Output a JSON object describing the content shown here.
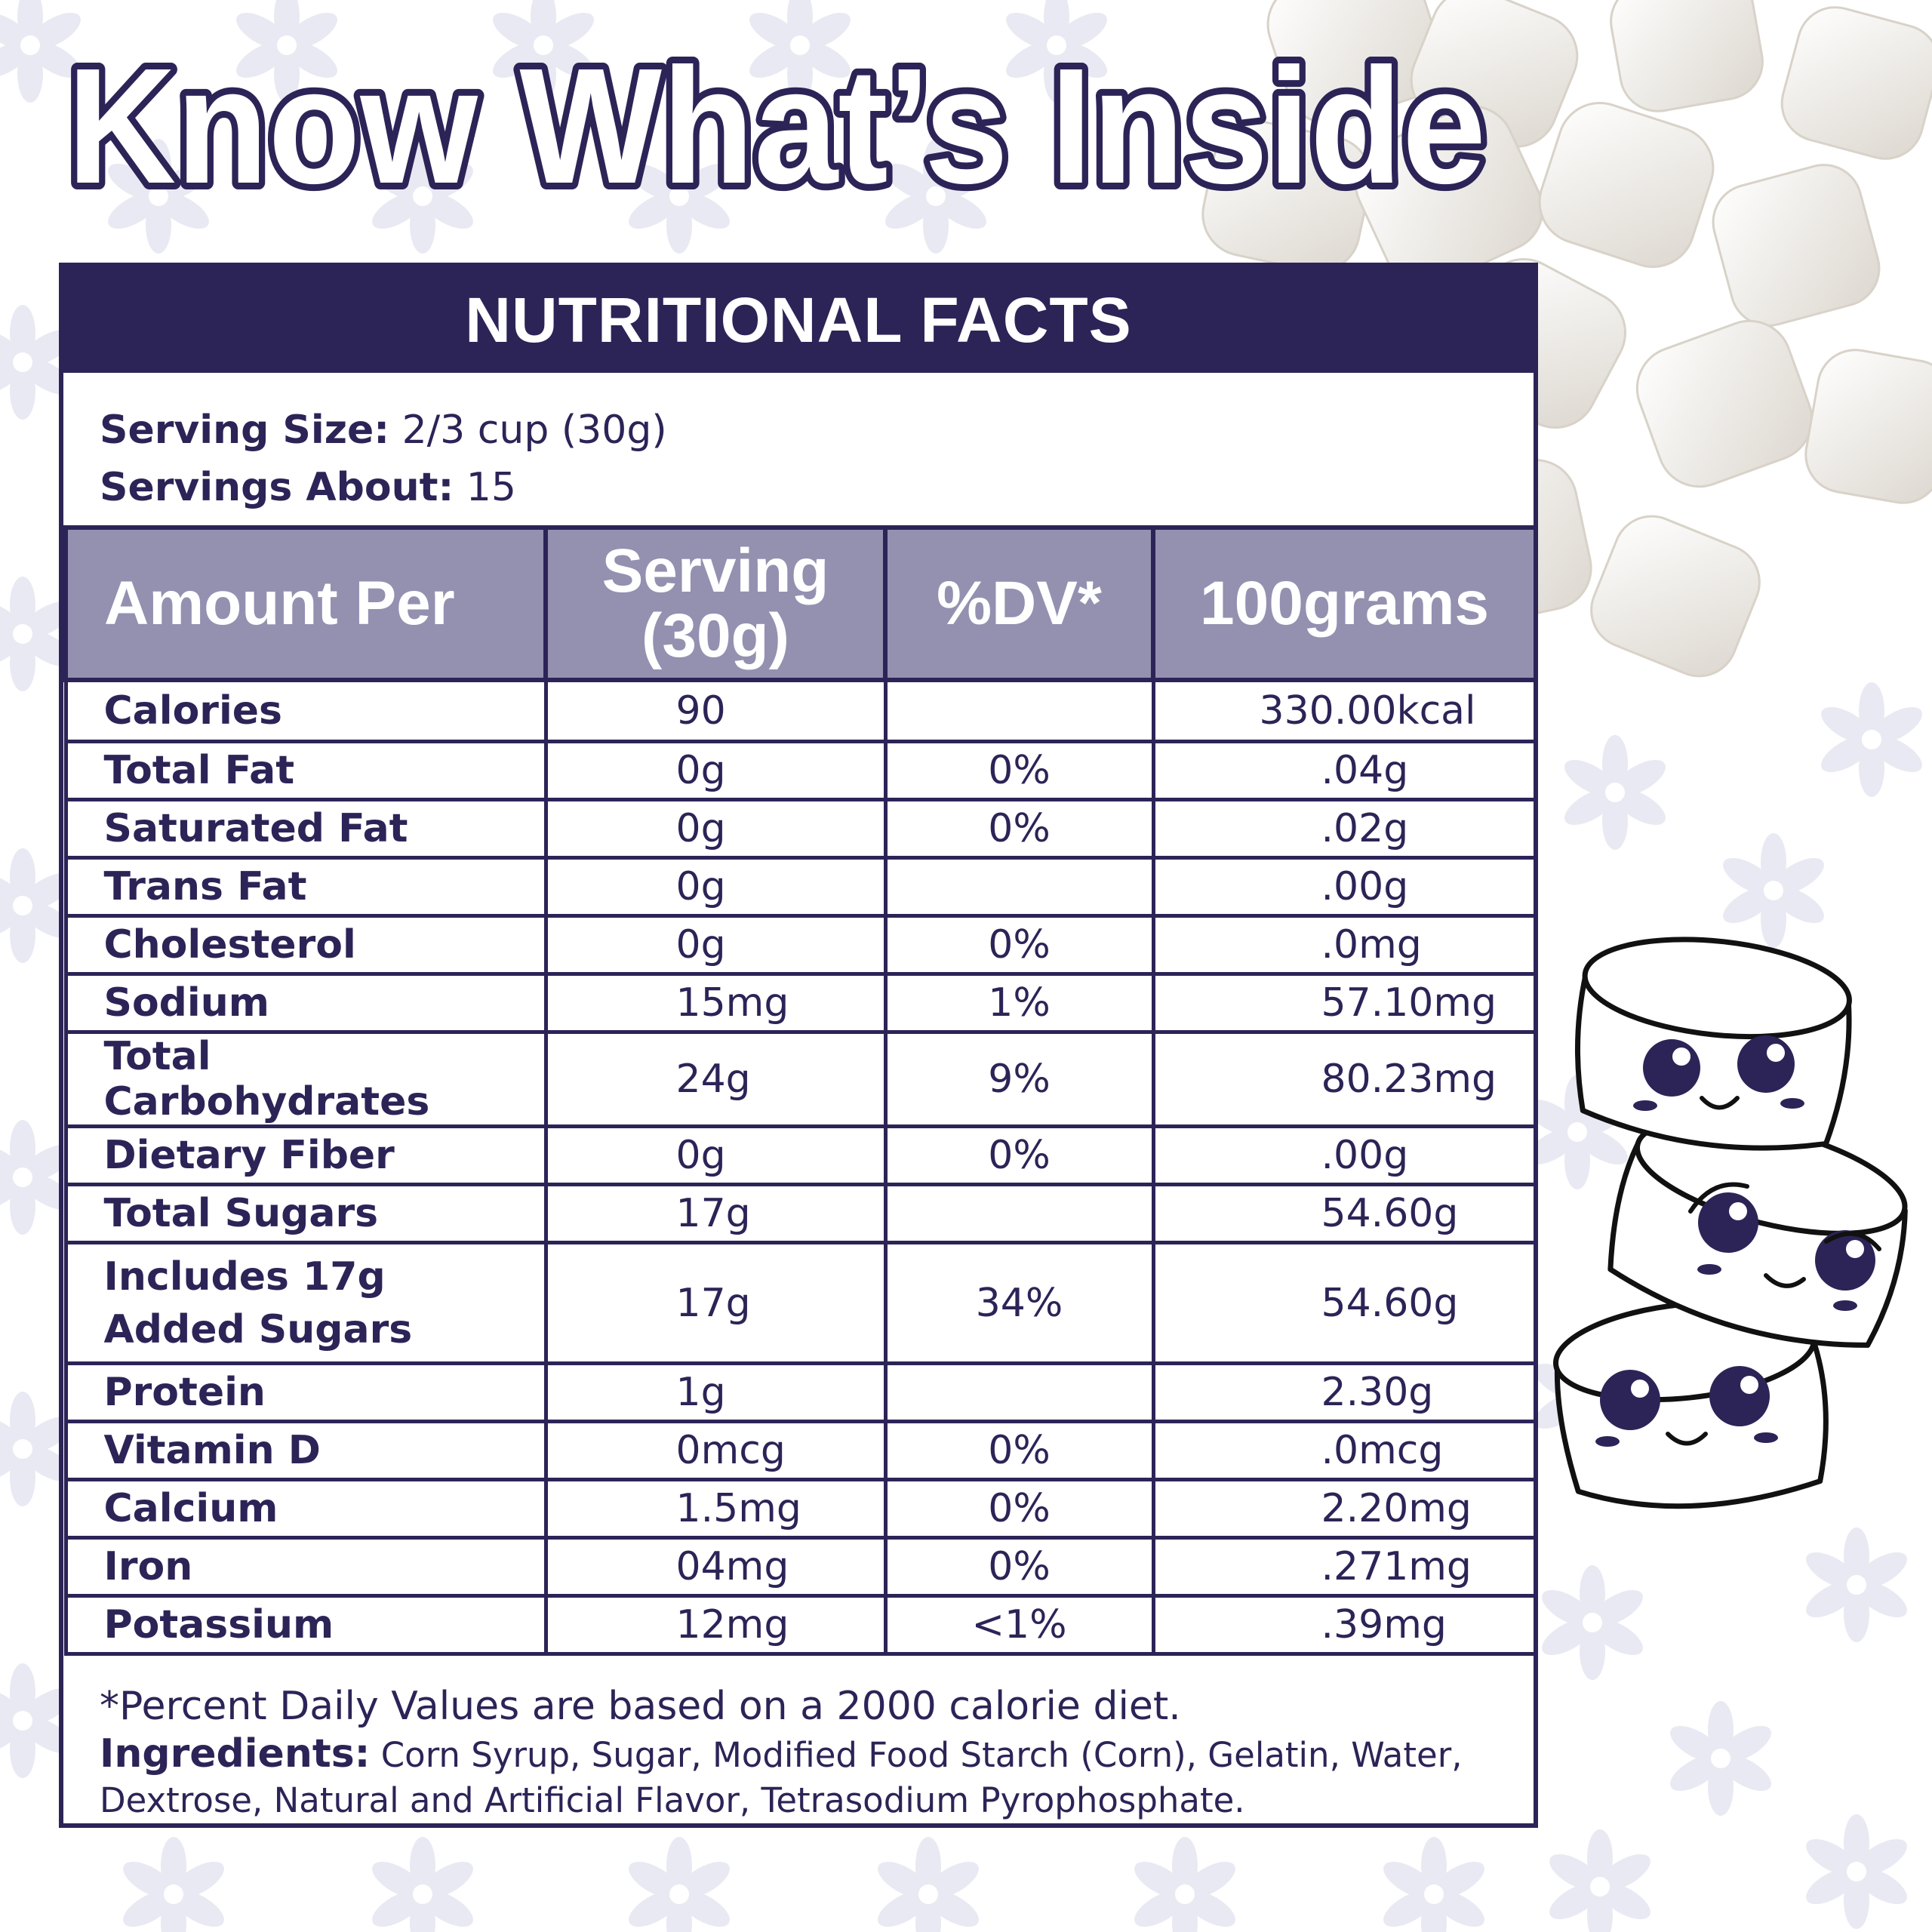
{
  "headline": "Know What’s Inside",
  "colors": {
    "navy": "#2c2457",
    "header_lavender": "#9490b0",
    "flower": "#e8e8f3"
  },
  "panel": {
    "title": "NUTRITIONAL FACTS",
    "serving_size_label": "Serving Size:",
    "serving_size_value": "2/3 cup (30g)",
    "servings_label": "Servings About:",
    "servings_value": "15"
  },
  "table": {
    "headers": {
      "label": "Amount Per",
      "serving_line1": "Serving",
      "serving_line2": "(30g)",
      "dv": "%DV*",
      "per100": "100grams"
    },
    "rows": [
      {
        "name": "Calories",
        "serving": "90",
        "dv": "",
        "per100": "330.00kcal"
      },
      {
        "name": "Total Fat",
        "serving": "0g",
        "dv": "0%",
        "per100": ".04g"
      },
      {
        "name": "Saturated Fat",
        "serving": "0g",
        "dv": "0%",
        "per100": ".02g"
      },
      {
        "name": "Trans Fat",
        "serving": "0g",
        "dv": "",
        "per100": ".00g"
      },
      {
        "name": "Cholesterol",
        "serving": "0g",
        "dv": "0%",
        "per100": ".0mg"
      },
      {
        "name": "Sodium",
        "serving": "15mg",
        "dv": "1%",
        "per100": "57.10mg"
      },
      {
        "name": "Total Carbohydrates",
        "serving": "24g",
        "dv": "9%",
        "per100": "80.23mg"
      },
      {
        "name": "Dietary Fiber",
        "serving": "0g",
        "dv": "0%",
        "per100": ".00g"
      },
      {
        "name": "Total Sugars",
        "serving": "17g",
        "dv": "",
        "per100": "54.60g"
      },
      {
        "name_line1": "Includes 17g",
        "name_line2": "Added Sugars",
        "serving": "17g",
        "dv": "34%",
        "per100": "54.60g"
      },
      {
        "name": "Protein",
        "serving": "1g",
        "dv": "",
        "per100": "2.30g"
      },
      {
        "name": "Vitamin D",
        "serving": "0mcg",
        "dv": "0%",
        "per100": ".0mcg"
      },
      {
        "name": "Calcium",
        "serving": "1.5mg",
        "dv": "0%",
        "per100": "2.20mg"
      },
      {
        "name": "Iron",
        "serving": "04mg",
        "dv": "0%",
        "per100": ".271mg"
      },
      {
        "name": "Potassium",
        "serving": "12mg",
        "dv": "<1%",
        "per100": ".39mg"
      }
    ]
  },
  "footer": {
    "footnote": "*Percent Daily Values are based on a 2000 calorie diet.",
    "ingredients_label": "Ingredients:",
    "ingredients_text": "Corn Syrup, Sugar, Modified Food Starch (Corn), Gelatin, Water, Dextrose, Natural and Artificial Flavor, Tetrasodium Pyrophosphate."
  }
}
